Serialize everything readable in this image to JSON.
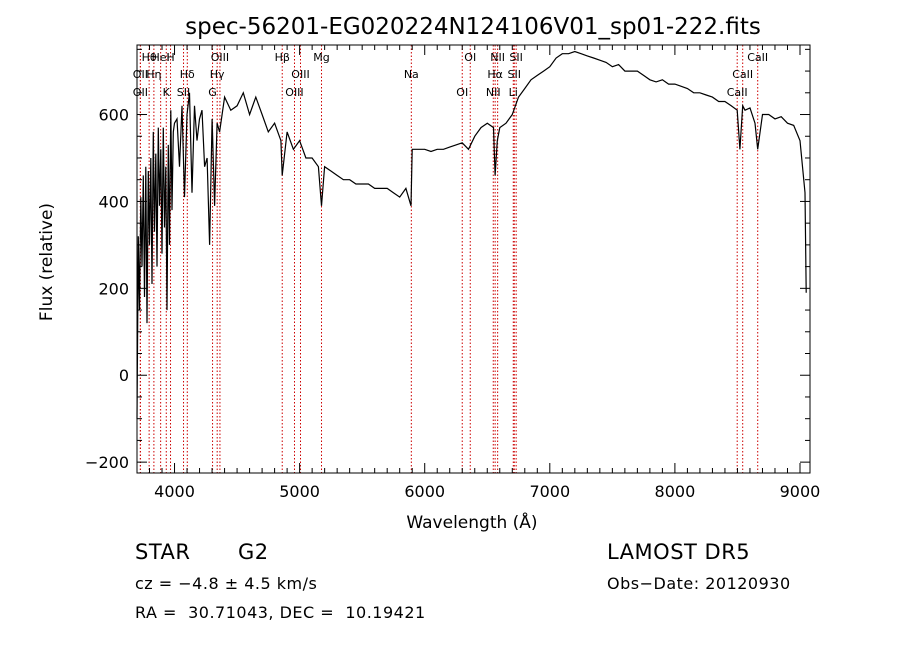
{
  "chart_data": {
    "type": "line",
    "title": "spec-56201-EG020224N124106V01_sp01-222.fits",
    "xlabel": "Wavelength (Å)",
    "ylabel": "Flux (relative)",
    "xlim": [
      3700,
      9080
    ],
    "ylim": [
      -225,
      760
    ],
    "x_ticks": [
      4000,
      5000,
      6000,
      7000,
      8000,
      9000
    ],
    "y_ticks": [
      -200,
      0,
      200,
      400,
      600
    ],
    "grid": false,
    "line_color": "#000000",
    "marker_color": "#cc0000",
    "series": [
      {
        "x": [
          3700,
          3710,
          3720,
          3730,
          3740,
          3750,
          3760,
          3770,
          3780,
          3790,
          3800,
          3810,
          3820,
          3830,
          3840,
          3850,
          3860,
          3870,
          3880,
          3890,
          3900,
          3910,
          3920,
          3930,
          3940,
          3950,
          3960,
          3970,
          3980,
          3990,
          4000,
          4020,
          4040,
          4060,
          4080,
          4100,
          4120,
          4140,
          4160,
          4180,
          4200,
          4220,
          4240,
          4260,
          4280,
          4300,
          4320,
          4340,
          4360,
          4380,
          4400,
          4450,
          4500,
          4550,
          4600,
          4650,
          4700,
          4750,
          4800,
          4850,
          4861,
          4900,
          4950,
          5000,
          5050,
          5100,
          5150,
          5175,
          5200,
          5250,
          5300,
          5350,
          5400,
          5450,
          5500,
          5550,
          5600,
          5650,
          5700,
          5750,
          5800,
          5850,
          5890,
          5900,
          5950,
          6000,
          6050,
          6100,
          6150,
          6200,
          6250,
          6300,
          6350,
          6400,
          6450,
          6500,
          6550,
          6563,
          6580,
          6600,
          6650,
          6700,
          6750,
          6800,
          6850,
          6900,
          6950,
          7000,
          7050,
          7100,
          7150,
          7200,
          7250,
          7300,
          7350,
          7400,
          7450,
          7500,
          7550,
          7600,
          7650,
          7700,
          7750,
          7800,
          7850,
          7900,
          7950,
          8000,
          8050,
          8100,
          8150,
          8200,
          8250,
          8300,
          8350,
          8400,
          8450,
          8498,
          8520,
          8542,
          8560,
          8600,
          8640,
          8662,
          8700,
          8750,
          8800,
          8850,
          8900,
          8950,
          9000,
          9020,
          9040,
          9050
        ],
        "y": [
          -100,
          320,
          150,
          410,
          250,
          460,
          180,
          480,
          120,
          470,
          300,
          500,
          210,
          560,
          330,
          510,
          250,
          570,
          390,
          520,
          280,
          570,
          340,
          480,
          150,
          530,
          300,
          610,
          380,
          560,
          580,
          590,
          480,
          620,
          410,
          600,
          650,
          420,
          620,
          540,
          590,
          610,
          480,
          500,
          300,
          590,
          390,
          580,
          560,
          600,
          640,
          610,
          620,
          650,
          600,
          640,
          600,
          560,
          580,
          540,
          460,
          560,
          520,
          540,
          500,
          500,
          480,
          390,
          480,
          470,
          460,
          450,
          450,
          440,
          440,
          440,
          430,
          430,
          430,
          420,
          410,
          430,
          390,
          520,
          520,
          520,
          515,
          520,
          520,
          525,
          530,
          535,
          520,
          550,
          570,
          580,
          570,
          460,
          540,
          570,
          580,
          600,
          640,
          660,
          680,
          690,
          700,
          710,
          730,
          740,
          740,
          745,
          740,
          735,
          730,
          725,
          720,
          710,
          715,
          700,
          700,
          700,
          690,
          680,
          675,
          680,
          670,
          670,
          665,
          660,
          650,
          650,
          645,
          640,
          630,
          630,
          620,
          610,
          520,
          620,
          610,
          615,
          580,
          520,
          600,
          600,
          590,
          595,
          580,
          575,
          540,
          480,
          420,
          190
        ]
      }
    ],
    "lines": [
      {
        "label": "Hθ",
        "x": 3797
      },
      {
        "label": "OII",
        "x": 3727
      },
      {
        "label": "OII",
        "x": 3727
      },
      {
        "label": "HeI",
        "x": 3889
      },
      {
        "label": "Hη",
        "x": 3835
      },
      {
        "label": "K",
        "x": 3934
      },
      {
        "label": "H",
        "x": 3968
      },
      {
        "label": "Hδ",
        "x": 4102
      },
      {
        "label": "SII",
        "x": 4072
      },
      {
        "label": "OIII",
        "x": 4363
      },
      {
        "label": "Hγ",
        "x": 4341
      },
      {
        "label": "G",
        "x": 4304
      },
      {
        "label": "Hβ",
        "x": 4861
      },
      {
        "label": "OIII",
        "x": 5007
      },
      {
        "label": "OIII",
        "x": 4959
      },
      {
        "label": "Mg",
        "x": 5175
      },
      {
        "label": "Na",
        "x": 5893
      },
      {
        "label": "OI",
        "x": 6300
      },
      {
        "label": "OI",
        "x": 6364
      },
      {
        "label": "Hα",
        "x": 6563
      },
      {
        "label": "NII",
        "x": 6548
      },
      {
        "label": "NII",
        "x": 6583
      },
      {
        "label": "SII",
        "x": 6716
      },
      {
        "label": "Li",
        "x": 6708
      },
      {
        "label": "SII",
        "x": 6731
      },
      {
        "label": "CaII",
        "x": 8542
      },
      {
        "label": "CaII",
        "x": 8498
      },
      {
        "label": "CaII",
        "x": 8662
      }
    ]
  },
  "info": {
    "object_type": "STAR",
    "subclass": "G2",
    "survey": "LAMOST DR5",
    "cz": "cz = −4.8 ± 4.5 km/s",
    "coords": "RA =  30.71043, DEC =  10.19421",
    "obs_date": "Obs−Date: 20120930"
  }
}
